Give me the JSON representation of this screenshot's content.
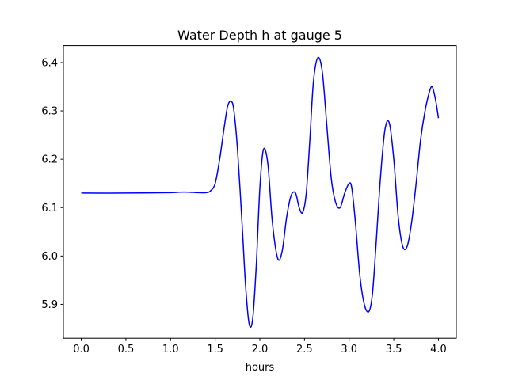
{
  "chart_data": {
    "type": "line",
    "title": "Water Depth h at gauge 5",
    "xlabel": "hours",
    "ylabel": "",
    "xlim": [
      -0.2,
      4.2
    ],
    "ylim": [
      5.83,
      6.435
    ],
    "grid": false,
    "xticks": [
      0.0,
      0.5,
      1.0,
      1.5,
      2.0,
      2.5,
      3.0,
      3.5,
      4.0
    ],
    "xtick_labels": [
      "0.0",
      "0.5",
      "1.0",
      "1.5",
      "2.0",
      "2.5",
      "3.0",
      "3.5",
      "4.0"
    ],
    "yticks": [
      5.9,
      6.0,
      6.1,
      6.2,
      6.3,
      6.4
    ],
    "ytick_labels": [
      "5.9",
      "6.0",
      "6.1",
      "6.2",
      "6.3",
      "6.4"
    ],
    "series": [
      {
        "color": "#0000ff",
        "x": [
          0.0,
          0.5,
          1.0,
          1.1,
          1.2,
          1.3,
          1.4,
          1.45,
          1.5,
          1.55,
          1.6,
          1.64,
          1.68,
          1.71,
          1.75,
          1.8,
          1.84,
          1.88,
          1.92,
          1.96,
          2.0,
          2.04,
          2.09,
          2.14,
          2.2,
          2.25,
          2.3,
          2.35,
          2.4,
          2.44,
          2.48,
          2.52,
          2.56,
          2.6,
          2.65,
          2.7,
          2.75,
          2.8,
          2.85,
          2.9,
          2.95,
          3.0,
          3.03,
          3.07,
          3.12,
          3.17,
          3.22,
          3.26,
          3.3,
          3.35,
          3.4,
          3.45,
          3.5,
          3.55,
          3.6,
          3.65,
          3.7,
          3.75,
          3.8,
          3.85,
          3.9,
          3.93,
          3.96,
          3.98,
          4.0
        ],
        "y": [
          6.13,
          6.13,
          6.131,
          6.132,
          6.132,
          6.131,
          6.131,
          6.135,
          6.15,
          6.2,
          6.265,
          6.31,
          6.32,
          6.3,
          6.22,
          6.07,
          5.94,
          5.86,
          5.87,
          5.98,
          6.14,
          6.22,
          6.19,
          6.07,
          5.995,
          6.01,
          6.08,
          6.125,
          6.13,
          6.1,
          6.09,
          6.13,
          6.24,
          6.36,
          6.41,
          6.38,
          6.27,
          6.16,
          6.11,
          6.1,
          6.13,
          6.15,
          6.14,
          6.07,
          5.96,
          5.9,
          5.885,
          5.92,
          6.02,
          6.16,
          6.26,
          6.275,
          6.2,
          6.08,
          6.02,
          6.02,
          6.07,
          6.15,
          6.24,
          6.3,
          6.34,
          6.35,
          6.33,
          6.31,
          6.285
        ]
      }
    ]
  }
}
